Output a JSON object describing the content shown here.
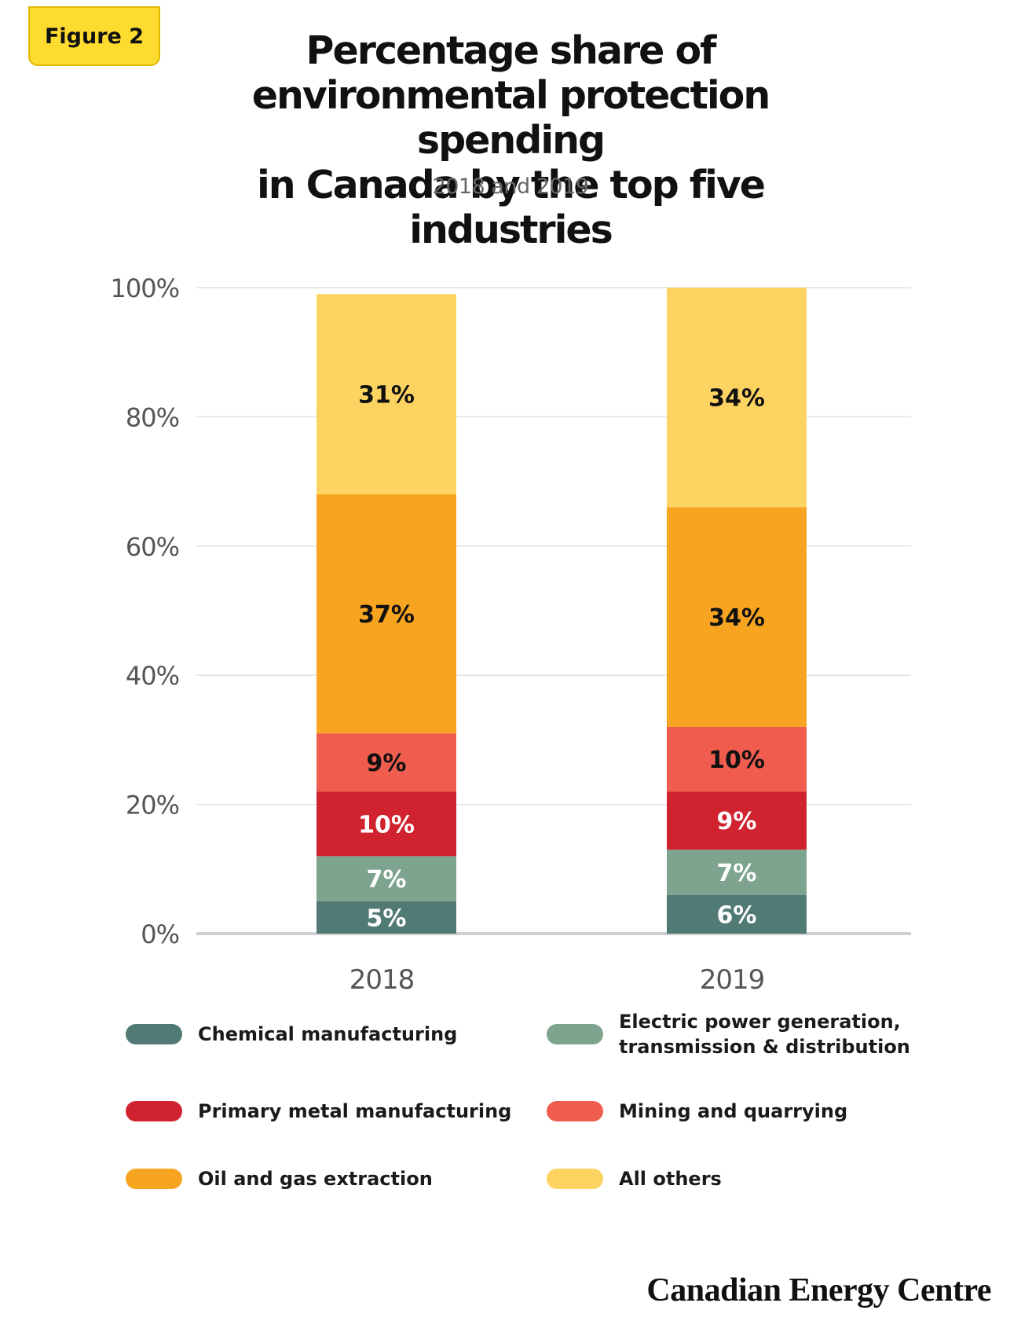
{
  "figure_label": "Figure 2",
  "brand": "Canadian Energy Centre",
  "chart_data": {
    "type": "bar",
    "stacked": true,
    "title_lines": [
      "Percentage share of",
      "environmental protection spending",
      "in Canada by the top five industries"
    ],
    "subtitle": "2018 and 2019",
    "categories": [
      "2018",
      "2019"
    ],
    "y_ticks": [
      "0%",
      "20%",
      "40%",
      "60%",
      "80%",
      "100%"
    ],
    "ylim": [
      0,
      100
    ],
    "grid": true,
    "legend_position": "bottom",
    "series": [
      {
        "name": "Chemical manufacturing",
        "values": [
          5,
          6
        ],
        "labels": [
          "5%",
          "6%"
        ],
        "color": "#527a75",
        "label_color": "#ffffff"
      },
      {
        "name": "Electric power generation,\ntransmission & distribution",
        "values": [
          7,
          7
        ],
        "labels": [
          "7%",
          "7%"
        ],
        "color": "#7ea38e",
        "label_color": "#ffffff"
      },
      {
        "name": "Primary metal manufacturing",
        "values": [
          10,
          9
        ],
        "labels": [
          "10%",
          "9%"
        ],
        "color": "#d0232f",
        "label_color": "#ffffff"
      },
      {
        "name": "Mining and quarrying",
        "values": [
          9,
          10
        ],
        "labels": [
          "9%",
          "10%"
        ],
        "color": "#f05d4e",
        "label_color": "#111111"
      },
      {
        "name": "Oil and gas extraction",
        "values": [
          37,
          34
        ],
        "labels": [
          "37%",
          "34%"
        ],
        "color": "#f7a421",
        "label_color": "#111111"
      },
      {
        "name": "All others",
        "values": [
          31,
          34
        ],
        "labels": [
          "31%",
          "34%"
        ],
        "color": "#fdd362",
        "label_color": "#111111"
      }
    ],
    "legend_order": [
      0,
      1,
      2,
      3,
      4,
      5
    ]
  }
}
